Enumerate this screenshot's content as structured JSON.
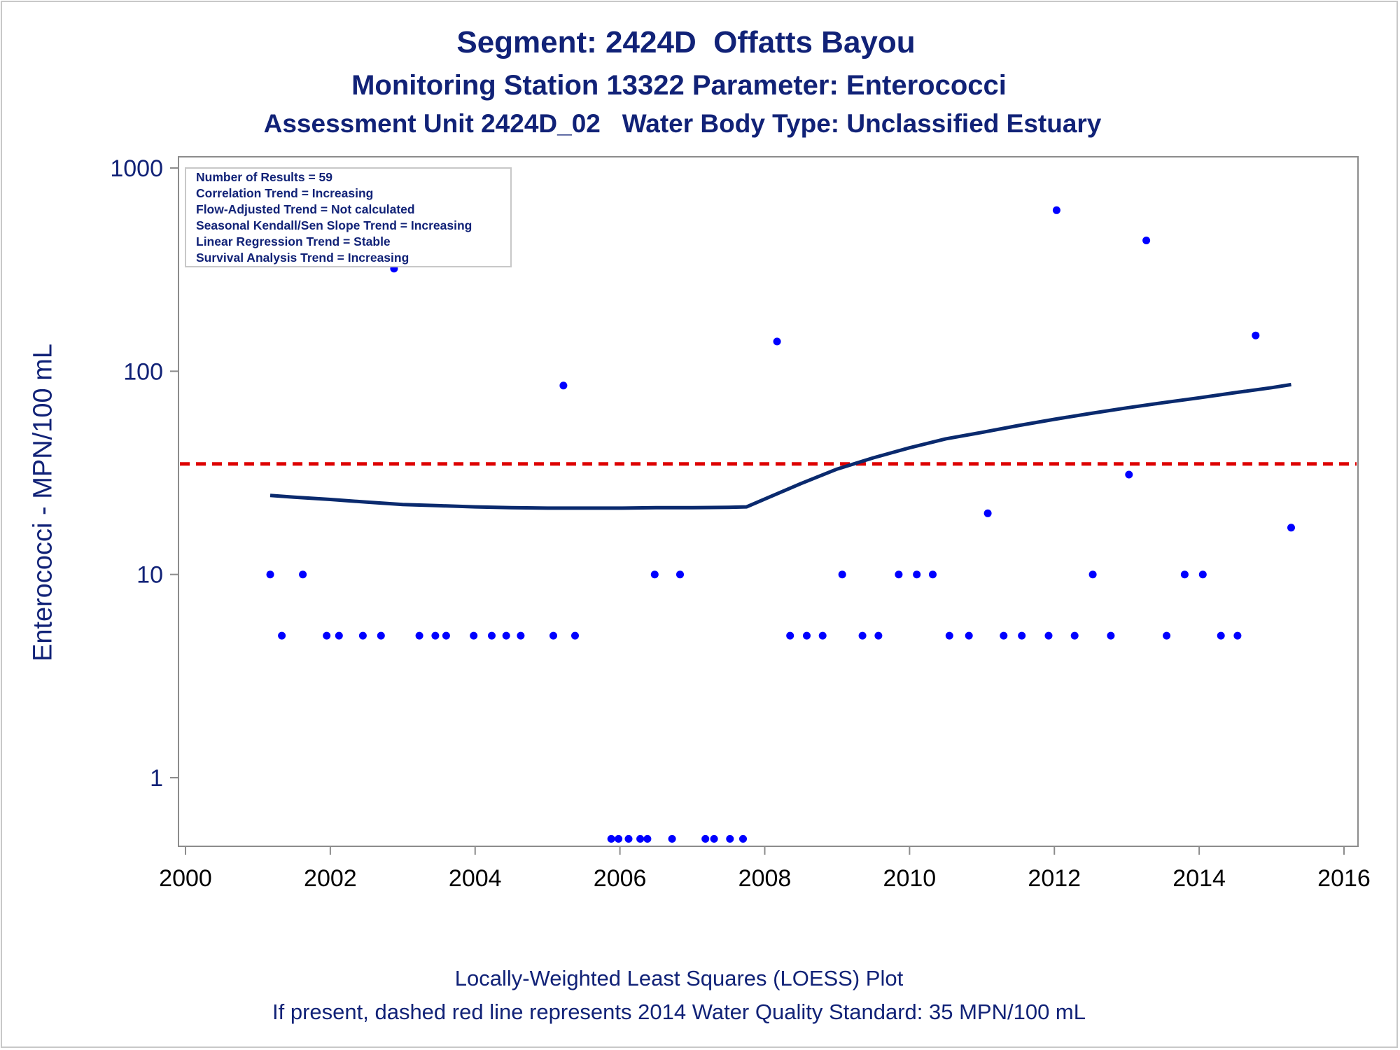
{
  "titles": {
    "line1": "Segment: 2424D  Offatts Bayou",
    "line2": "Monitoring Station 13322 Parameter: Enterococci",
    "line3": "Assessment Unit 2424D_02   Water Body Type: Unclassified Estuary"
  },
  "footnotes": {
    "line1": "Locally-Weighted Least Squares (LOESS) Plot",
    "line2": "If present, dashed red line represents 2014 Water Quality Standard: 35 MPN/100 mL"
  },
  "stats_box": [
    "Number of Results = 59",
    "Correlation Trend = Increasing",
    "Flow-Adjusted Trend = Not calculated",
    "Seasonal Kendall/Sen Slope Trend = Increasing",
    "Linear Regression Trend = Stable",
    "Survival Analysis Trend = Increasing"
  ],
  "colors": {
    "points": "#0000ff",
    "loess": "#0a2a6e",
    "standard_line": "#dd0000",
    "text": "#112277"
  },
  "chart_data": {
    "type": "scatter",
    "ylabel": "Enterococci - MPN/100 mL",
    "xlabel": "",
    "yscale": "log",
    "ylim": [
      0.45,
      1150
    ],
    "xlim": [
      1999.9,
      2016.1
    ],
    "yticks": [
      1,
      10,
      100,
      1000
    ],
    "ytick_labels": [
      "1",
      "10",
      "100",
      "1000"
    ],
    "xticks": [
      2000,
      2002,
      2004,
      2006,
      2008,
      2010,
      2012,
      2014,
      2016
    ],
    "xtick_labels": [
      "2000",
      "2002",
      "2004",
      "2006",
      "2008",
      "2010",
      "2012",
      "2014",
      "2016"
    ],
    "grid": false,
    "legend_placement": "top-left",
    "standard": {
      "value": 35,
      "style": "dashed"
    },
    "points": [
      [
        2001.17,
        10
      ],
      [
        2001.33,
        5
      ],
      [
        2001.62,
        10
      ],
      [
        2001.95,
        5
      ],
      [
        2002.12,
        5
      ],
      [
        2002.45,
        5
      ],
      [
        2002.7,
        5
      ],
      [
        2002.88,
        320
      ],
      [
        2003.23,
        5
      ],
      [
        2003.45,
        5
      ],
      [
        2003.6,
        5
      ],
      [
        2003.98,
        5
      ],
      [
        2004.23,
        5
      ],
      [
        2004.43,
        5
      ],
      [
        2004.63,
        5
      ],
      [
        2005.08,
        5
      ],
      [
        2005.22,
        85
      ],
      [
        2005.38,
        5
      ],
      [
        2005.88,
        0.5
      ],
      [
        2005.98,
        0.5
      ],
      [
        2006.12,
        0.5
      ],
      [
        2006.28,
        0.5
      ],
      [
        2006.38,
        0.5
      ],
      [
        2006.48,
        10
      ],
      [
        2006.72,
        0.5
      ],
      [
        2006.83,
        10
      ],
      [
        2007.18,
        0.5
      ],
      [
        2007.3,
        0.5
      ],
      [
        2007.52,
        0.5
      ],
      [
        2007.7,
        0.5
      ],
      [
        2008.17,
        140
      ],
      [
        2008.35,
        5
      ],
      [
        2008.58,
        5
      ],
      [
        2008.8,
        5
      ],
      [
        2009.07,
        10
      ],
      [
        2009.35,
        5
      ],
      [
        2009.57,
        5
      ],
      [
        2009.85,
        10
      ],
      [
        2010.1,
        10
      ],
      [
        2010.32,
        10
      ],
      [
        2010.55,
        5
      ],
      [
        2010.82,
        5
      ],
      [
        2011.08,
        20
      ],
      [
        2011.3,
        5
      ],
      [
        2011.55,
        5
      ],
      [
        2011.92,
        5
      ],
      [
        2012.03,
        620
      ],
      [
        2012.28,
        5
      ],
      [
        2012.53,
        10
      ],
      [
        2012.78,
        5
      ],
      [
        2013.03,
        31
      ],
      [
        2013.27,
        440
      ],
      [
        2013.55,
        5
      ],
      [
        2013.8,
        10
      ],
      [
        2014.05,
        10
      ],
      [
        2014.3,
        5
      ],
      [
        2014.53,
        5
      ],
      [
        2014.78,
        150
      ],
      [
        2015.27,
        17
      ]
    ],
    "loess": [
      [
        2001.17,
        24.5
      ],
      [
        2001.5,
        24.0
      ],
      [
        2002.0,
        23.4
      ],
      [
        2002.5,
        22.7
      ],
      [
        2003.0,
        22.1
      ],
      [
        2003.5,
        21.8
      ],
      [
        2004.0,
        21.5
      ],
      [
        2004.5,
        21.3
      ],
      [
        2005.0,
        21.2
      ],
      [
        2005.5,
        21.2
      ],
      [
        2006.0,
        21.2
      ],
      [
        2006.5,
        21.3
      ],
      [
        2007.0,
        21.3
      ],
      [
        2007.5,
        21.4
      ],
      [
        2007.75,
        21.5
      ],
      [
        2008.0,
        23.5
      ],
      [
        2008.5,
        28.0
      ],
      [
        2009.0,
        33.0
      ],
      [
        2009.5,
        37.5
      ],
      [
        2010.0,
        42.0
      ],
      [
        2010.5,
        46.5
      ],
      [
        2011.0,
        50.0
      ],
      [
        2011.5,
        54.0
      ],
      [
        2012.0,
        58.0
      ],
      [
        2012.5,
        62.0
      ],
      [
        2013.0,
        66.0
      ],
      [
        2013.5,
        70.0
      ],
      [
        2014.0,
        74.0
      ],
      [
        2014.5,
        78.5
      ],
      [
        2015.0,
        83.0
      ],
      [
        2015.27,
        86.0
      ]
    ]
  }
}
